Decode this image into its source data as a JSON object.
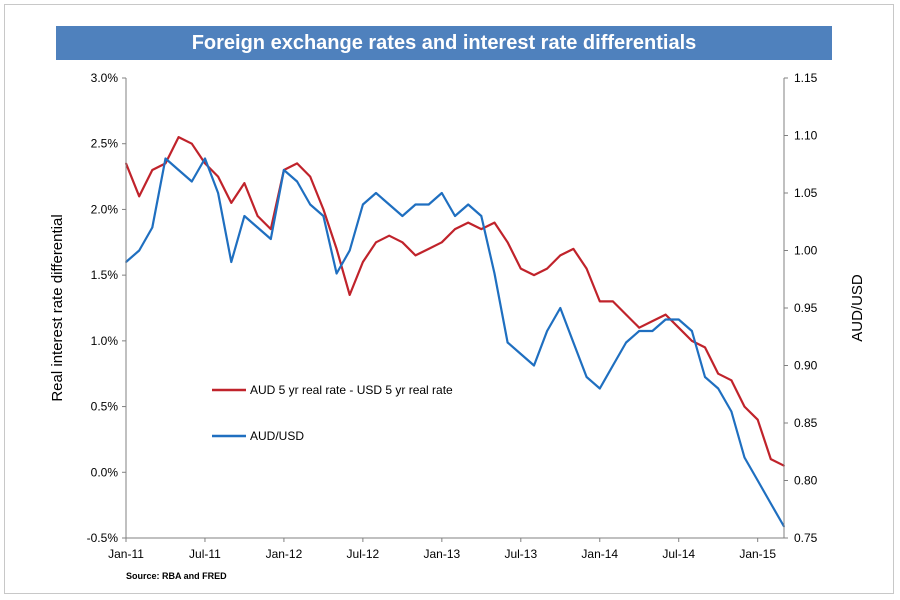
{
  "chart_data": {
    "type": "line",
    "title": "Foreign exchange rates and interest rate differentials",
    "source": "Source: RBA and FRED",
    "y_left": {
      "label": "Real interest rate differential",
      "range": [
        -0.5,
        3.0
      ],
      "ticks": [
        "-0.5%",
        "0.0%",
        "0.5%",
        "1.0%",
        "1.5%",
        "2.0%",
        "2.5%",
        "3.0%"
      ]
    },
    "y_right": {
      "label": "AUD/USD",
      "range": [
        0.75,
        1.15
      ],
      "ticks": [
        "0.75",
        "0.80",
        "0.85",
        "0.90",
        "0.95",
        "1.00",
        "1.05",
        "1.10",
        "1.15"
      ]
    },
    "x_axis": {
      "start": "2011-01",
      "end": "2015-03",
      "tick_labels": [
        "Jan-11",
        "Jul-11",
        "Jan-12",
        "Jul-12",
        "Jan-13",
        "Jul-13",
        "Jan-14",
        "Jul-14",
        "Jan-15"
      ]
    },
    "legend_position": "center-left",
    "series": [
      {
        "name": "AUD 5 yr real rate - USD 5 yr real rate",
        "axis": "left",
        "color": "#c0232b",
        "x": [
          "2011-01",
          "2011-02",
          "2011-03",
          "2011-04",
          "2011-05",
          "2011-06",
          "2011-07",
          "2011-08",
          "2011-09",
          "2011-10",
          "2011-11",
          "2011-12",
          "2012-01",
          "2012-02",
          "2012-03",
          "2012-04",
          "2012-05",
          "2012-06",
          "2012-07",
          "2012-08",
          "2012-09",
          "2012-10",
          "2012-11",
          "2012-12",
          "2013-01",
          "2013-02",
          "2013-03",
          "2013-04",
          "2013-05",
          "2013-06",
          "2013-07",
          "2013-08",
          "2013-09",
          "2013-10",
          "2013-11",
          "2013-12",
          "2014-01",
          "2014-02",
          "2014-03",
          "2014-04",
          "2014-05",
          "2014-06",
          "2014-07",
          "2014-08",
          "2014-09",
          "2014-10",
          "2014-11",
          "2014-12",
          "2015-01",
          "2015-02",
          "2015-03"
        ],
        "values": [
          2.35,
          2.1,
          2.3,
          2.35,
          2.55,
          2.5,
          2.35,
          2.25,
          2.05,
          2.2,
          1.95,
          1.85,
          2.3,
          2.35,
          2.25,
          2.0,
          1.7,
          1.35,
          1.6,
          1.75,
          1.8,
          1.75,
          1.65,
          1.7,
          1.75,
          1.85,
          1.9,
          1.85,
          1.9,
          1.75,
          1.55,
          1.5,
          1.55,
          1.65,
          1.7,
          1.55,
          1.3,
          1.3,
          1.2,
          1.1,
          1.15,
          1.2,
          1.1,
          1.0,
          0.95,
          0.75,
          0.7,
          0.5,
          0.4,
          0.1,
          0.05
        ]
      },
      {
        "name": "AUD/USD",
        "axis": "right",
        "color": "#1f6fc0",
        "x": [
          "2011-01",
          "2011-02",
          "2011-03",
          "2011-04",
          "2011-05",
          "2011-06",
          "2011-07",
          "2011-08",
          "2011-09",
          "2011-10",
          "2011-11",
          "2011-12",
          "2012-01",
          "2012-02",
          "2012-03",
          "2012-04",
          "2012-05",
          "2012-06",
          "2012-07",
          "2012-08",
          "2012-09",
          "2012-10",
          "2012-11",
          "2012-12",
          "2013-01",
          "2013-02",
          "2013-03",
          "2013-04",
          "2013-05",
          "2013-06",
          "2013-07",
          "2013-08",
          "2013-09",
          "2013-10",
          "2013-11",
          "2013-12",
          "2014-01",
          "2014-02",
          "2014-03",
          "2014-04",
          "2014-05",
          "2014-06",
          "2014-07",
          "2014-08",
          "2014-09",
          "2014-10",
          "2014-11",
          "2014-12",
          "2015-01",
          "2015-02",
          "2015-03"
        ],
        "values": [
          0.99,
          1.0,
          1.02,
          1.08,
          1.07,
          1.06,
          1.08,
          1.05,
          0.99,
          1.03,
          1.02,
          1.01,
          1.07,
          1.06,
          1.04,
          1.03,
          0.98,
          1.0,
          1.04,
          1.05,
          1.04,
          1.03,
          1.04,
          1.04,
          1.05,
          1.03,
          1.04,
          1.03,
          0.98,
          0.92,
          0.91,
          0.9,
          0.93,
          0.95,
          0.92,
          0.89,
          0.88,
          0.9,
          0.92,
          0.93,
          0.93,
          0.94,
          0.94,
          0.93,
          0.89,
          0.88,
          0.86,
          0.82,
          0.8,
          0.78,
          0.76
        ]
      }
    ]
  }
}
